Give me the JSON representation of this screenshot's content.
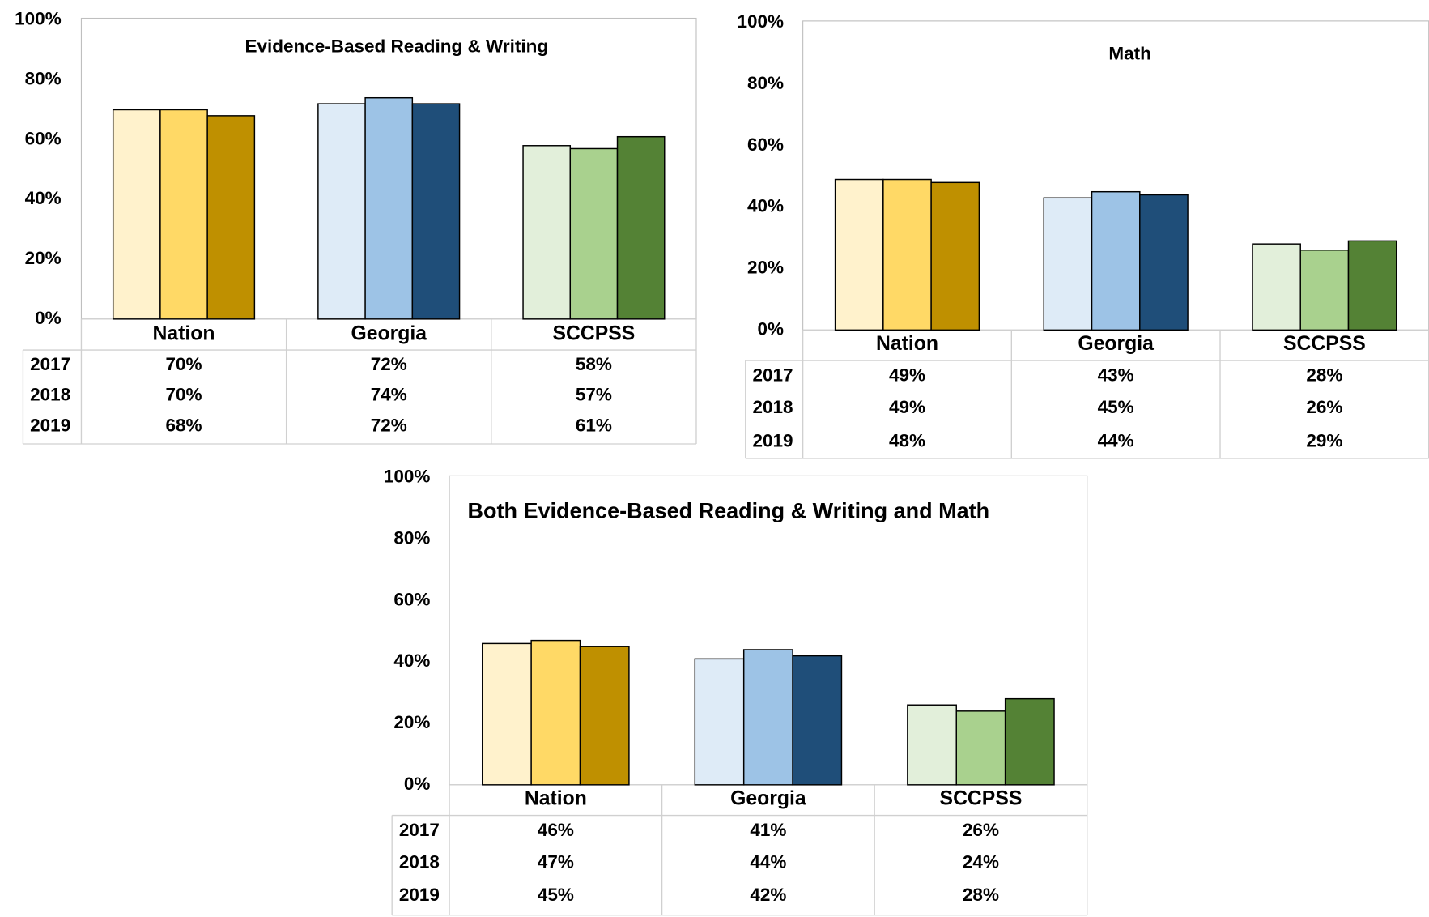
{
  "chart_data": [
    {
      "type": "bar",
      "title": "Evidence-Based Reading & Writing",
      "categories": [
        "Nation",
        "Georgia",
        "SCCPSS"
      ],
      "series": [
        {
          "name": "2017",
          "colors": [
            "#fff2cc",
            "#deebf7",
            "#e2efda"
          ],
          "values": [
            70,
            72,
            58
          ],
          "value_labels": [
            "70%",
            "72%",
            "58%"
          ]
        },
        {
          "name": "2018",
          "colors": [
            "#ffd966",
            "#9dc3e6",
            "#a9d18e"
          ],
          "values": [
            70,
            74,
            57
          ],
          "value_labels": [
            "70%",
            "74%",
            "57%"
          ]
        },
        {
          "name": "2019",
          "colors": [
            "#bf9000",
            "#1f4e79",
            "#548235"
          ],
          "values": [
            68,
            72,
            61
          ],
          "value_labels": [
            "68%",
            "72%",
            "61%"
          ]
        }
      ],
      "ylim": [
        0,
        100
      ],
      "yticks": [
        {
          "value": 0,
          "label": "0%"
        },
        {
          "value": 20,
          "label": "20%"
        },
        {
          "value": 40,
          "label": "40%"
        },
        {
          "value": 60,
          "label": "60%"
        },
        {
          "value": 80,
          "label": "80%"
        },
        {
          "value": 100,
          "label": "100%"
        }
      ]
    },
    {
      "type": "bar",
      "title": "Math",
      "categories": [
        "Nation",
        "Georgia",
        "SCCPSS"
      ],
      "series": [
        {
          "name": "2017",
          "colors": [
            "#fff2cc",
            "#deebf7",
            "#e2efda"
          ],
          "values": [
            49,
            43,
            28
          ],
          "value_labels": [
            "49%",
            "43%",
            "28%"
          ]
        },
        {
          "name": "2018",
          "colors": [
            "#ffd966",
            "#9dc3e6",
            "#a9d18e"
          ],
          "values": [
            49,
            45,
            26
          ],
          "value_labels": [
            "49%",
            "45%",
            "26%"
          ]
        },
        {
          "name": "2019",
          "colors": [
            "#bf9000",
            "#1f4e79",
            "#548235"
          ],
          "values": [
            48,
            44,
            29
          ],
          "value_labels": [
            "48%",
            "44%",
            "29%"
          ]
        }
      ],
      "ylim": [
        0,
        100
      ],
      "yticks": [
        {
          "value": 0,
          "label": "0%"
        },
        {
          "value": 20,
          "label": "20%"
        },
        {
          "value": 40,
          "label": "40%"
        },
        {
          "value": 60,
          "label": "60%"
        },
        {
          "value": 80,
          "label": "80%"
        },
        {
          "value": 100,
          "label": "100%"
        }
      ]
    },
    {
      "type": "bar",
      "title": "Both Evidence-Based Reading & Writing and Math",
      "categories": [
        "Nation",
        "Georgia",
        "SCCPSS"
      ],
      "series": [
        {
          "name": "2017",
          "colors": [
            "#fff2cc",
            "#deebf7",
            "#e2efda"
          ],
          "values": [
            46,
            41,
            26
          ],
          "value_labels": [
            "46%",
            "41%",
            "26%"
          ]
        },
        {
          "name": "2018",
          "colors": [
            "#ffd966",
            "#9dc3e6",
            "#a9d18e"
          ],
          "values": [
            47,
            44,
            24
          ],
          "value_labels": [
            "47%",
            "44%",
            "24%"
          ]
        },
        {
          "name": "2019",
          "colors": [
            "#bf9000",
            "#1f4e79",
            "#548235"
          ],
          "values": [
            45,
            42,
            28
          ],
          "value_labels": [
            "45%",
            "42%",
            "28%"
          ]
        }
      ],
      "ylim": [
        0,
        100
      ],
      "yticks": [
        {
          "value": 0,
          "label": "0%"
        },
        {
          "value": 20,
          "label": "20%"
        },
        {
          "value": 40,
          "label": "40%"
        },
        {
          "value": 60,
          "label": "60%"
        },
        {
          "value": 80,
          "label": "80%"
        },
        {
          "value": 100,
          "label": "100%"
        }
      ]
    }
  ]
}
